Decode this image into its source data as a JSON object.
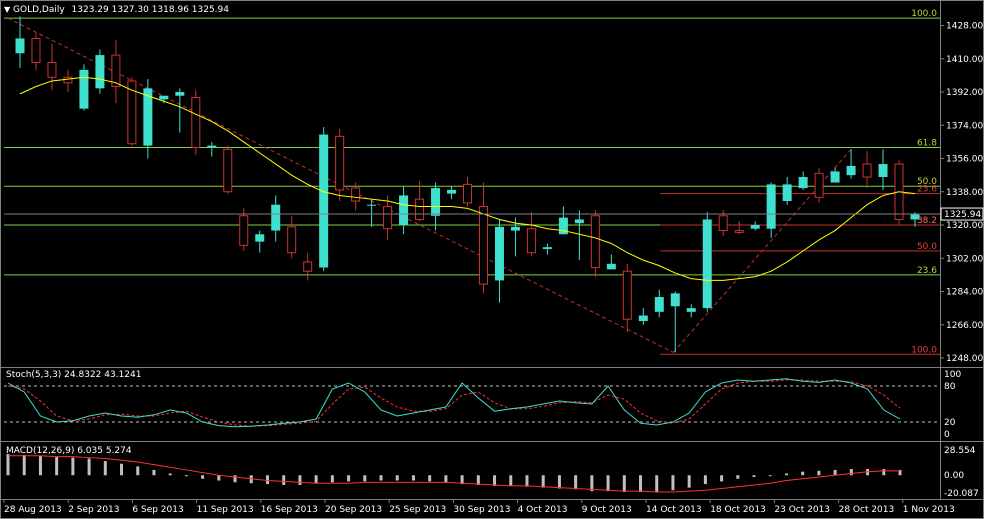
{
  "header": {
    "symbol": "GOLD,Daily",
    "ohlc": "1323.29 1327.30 1318.96 1325.94",
    "stoch_label": "Stoch(5,3,3) 24.8322 43.1241",
    "macd_label": "MACD(12,26,9) 6.035 5.274"
  },
  "colors": {
    "background": "#000000",
    "bull_candle": "#40e0d0",
    "bear_candle": "#cc3333",
    "moving_average": "#ffff00",
    "fib_green": "#80d040",
    "fib_red": "#c03030",
    "stoch_main": "#40e0d0",
    "stoch_signal": "#ff3030",
    "macd_hist": "#c0c0c0",
    "macd_signal": "#ff3030"
  },
  "chart_data": {
    "type": "candlestick",
    "price_axis_ticks": [
      "1428.00",
      "1410.00",
      "1392.00",
      "1374.00",
      "1356.00",
      "1338.00",
      "1320.00",
      "1302.00",
      "1284.00",
      "1266.00",
      "1248.00"
    ],
    "last_price": "1325.94",
    "date_labels": [
      "28 Aug 2013",
      "2 Sep 2013",
      "6 Sep 2013",
      "11 Sep 2013",
      "16 Sep 2013",
      "20 Sep 2013",
      "25 Sep 2013",
      "30 Sep 2013",
      "4 Oct 2013",
      "9 Oct 2013",
      "14 Oct 2013",
      "18 Oct 2013",
      "23 Oct 2013",
      "28 Oct 2013",
      "1 Nov 2013"
    ],
    "candles": [
      {
        "o": 1413,
        "h": 1433,
        "l": 1405,
        "c": 1421
      },
      {
        "o": 1421,
        "h": 1424,
        "l": 1404,
        "c": 1408
      },
      {
        "o": 1408,
        "h": 1418,
        "l": 1393,
        "c": 1400
      },
      {
        "o": 1400,
        "h": 1404,
        "l": 1392,
        "c": 1397
      },
      {
        "o": 1383,
        "h": 1407,
        "l": 1382,
        "c": 1404
      },
      {
        "o": 1394,
        "h": 1415,
        "l": 1391,
        "c": 1412
      },
      {
        "o": 1412,
        "h": 1420,
        "l": 1386,
        "c": 1395
      },
      {
        "o": 1398,
        "h": 1400,
        "l": 1363,
        "c": 1364
      },
      {
        "o": 1363,
        "h": 1399,
        "l": 1356,
        "c": 1394
      },
      {
        "o": 1388,
        "h": 1390,
        "l": 1386,
        "c": 1390
      },
      {
        "o": 1390,
        "h": 1394,
        "l": 1370,
        "c": 1392
      },
      {
        "o": 1389,
        "h": 1393,
        "l": 1358,
        "c": 1362
      },
      {
        "o": 1362,
        "h": 1365,
        "l": 1357,
        "c": 1363
      },
      {
        "o": 1361,
        "h": 1363,
        "l": 1337,
        "c": 1338
      },
      {
        "o": 1325,
        "h": 1329,
        "l": 1306,
        "c": 1309
      },
      {
        "o": 1311,
        "h": 1317,
        "l": 1305,
        "c": 1315
      },
      {
        "o": 1317,
        "h": 1336,
        "l": 1311,
        "c": 1331
      },
      {
        "o": 1319,
        "h": 1325,
        "l": 1302,
        "c": 1305
      },
      {
        "o": 1300,
        "h": 1305,
        "l": 1290,
        "c": 1295
      },
      {
        "o": 1297,
        "h": 1373,
        "l": 1295,
        "c": 1369
      },
      {
        "o": 1368,
        "h": 1372,
        "l": 1333,
        "c": 1339
      },
      {
        "o": 1340,
        "h": 1343,
        "l": 1328,
        "c": 1333
      },
      {
        "o": 1331,
        "h": 1334,
        "l": 1319,
        "c": 1331
      },
      {
        "o": 1330,
        "h": 1336,
        "l": 1312,
        "c": 1318
      },
      {
        "o": 1320,
        "h": 1341,
        "l": 1315,
        "c": 1336
      },
      {
        "o": 1334,
        "h": 1344,
        "l": 1322,
        "c": 1323
      },
      {
        "o": 1325,
        "h": 1343,
        "l": 1317,
        "c": 1340
      },
      {
        "o": 1337,
        "h": 1341,
        "l": 1334,
        "c": 1339
      },
      {
        "o": 1342,
        "h": 1346,
        "l": 1330,
        "c": 1332
      },
      {
        "o": 1330,
        "h": 1343,
        "l": 1283,
        "c": 1288
      },
      {
        "o": 1290,
        "h": 1323,
        "l": 1278,
        "c": 1319
      },
      {
        "o": 1317,
        "h": 1324,
        "l": 1303,
        "c": 1319
      },
      {
        "o": 1318,
        "h": 1327,
        "l": 1303,
        "c": 1305
      },
      {
        "o": 1307,
        "h": 1310,
        "l": 1304,
        "c": 1308
      },
      {
        "o": 1315,
        "h": 1330,
        "l": 1315,
        "c": 1324
      },
      {
        "o": 1321,
        "h": 1328,
        "l": 1301,
        "c": 1323
      },
      {
        "o": 1325,
        "h": 1328,
        "l": 1292,
        "c": 1297
      },
      {
        "o": 1296,
        "h": 1304,
        "l": 1296,
        "c": 1299
      },
      {
        "o": 1295,
        "h": 1299,
        "l": 1262,
        "c": 1269
      },
      {
        "o": 1268,
        "h": 1275,
        "l": 1266,
        "c": 1271
      },
      {
        "o": 1273,
        "h": 1285,
        "l": 1270,
        "c": 1281
      },
      {
        "o": 1276,
        "h": 1284,
        "l": 1251,
        "c": 1283
      },
      {
        "o": 1273,
        "h": 1277,
        "l": 1270,
        "c": 1275
      },
      {
        "o": 1275,
        "h": 1327,
        "l": 1273,
        "c": 1323
      },
      {
        "o": 1325,
        "h": 1328,
        "l": 1314,
        "c": 1317
      },
      {
        "o": 1317,
        "h": 1322,
        "l": 1315,
        "c": 1316
      },
      {
        "o": 1318,
        "h": 1322,
        "l": 1317,
        "c": 1320
      },
      {
        "o": 1318,
        "h": 1343,
        "l": 1313,
        "c": 1342
      },
      {
        "o": 1333,
        "h": 1346,
        "l": 1331,
        "c": 1342
      },
      {
        "o": 1340,
        "h": 1349,
        "l": 1339,
        "c": 1346
      },
      {
        "o": 1348,
        "h": 1351,
        "l": 1332,
        "c": 1335
      },
      {
        "o": 1343,
        "h": 1351,
        "l": 1343,
        "c": 1349
      },
      {
        "o": 1347,
        "h": 1361,
        "l": 1345,
        "c": 1352
      },
      {
        "o": 1353,
        "h": 1360,
        "l": 1340,
        "c": 1346
      },
      {
        "o": 1346,
        "h": 1361,
        "l": 1339,
        "c": 1353
      },
      {
        "o": 1353,
        "h": 1355,
        "l": 1320,
        "c": 1323
      },
      {
        "o": 1323,
        "h": 1327,
        "l": 1319,
        "c": 1326
      }
    ],
    "moving_average": [
      1391,
      1395,
      1398,
      1399,
      1400,
      1399,
      1397,
      1393,
      1390,
      1387,
      1384,
      1380,
      1376,
      1371,
      1365,
      1359,
      1353,
      1347,
      1342,
      1338,
      1336,
      1335,
      1334,
      1333,
      1331,
      1330,
      1330,
      1330,
      1329,
      1326,
      1323,
      1321,
      1320,
      1318,
      1317,
      1315,
      1313,
      1310,
      1305,
      1301,
      1298,
      1294,
      1291,
      1290,
      1290,
      1291,
      1292,
      1295,
      1300,
      1306,
      1312,
      1317,
      1324,
      1331,
      1336,
      1338,
      1337
    ],
    "fibonacci_levels": [
      {
        "label": "100.0",
        "price": 1432,
        "color": "green"
      },
      {
        "label": "61.8",
        "price": 1362,
        "color": "green"
      },
      {
        "label": "50.0",
        "price": 1341,
        "color": "green"
      },
      {
        "label": "38.2",
        "price": 1320,
        "color": "green"
      },
      {
        "label": "23.6",
        "price": 1293,
        "color": "green"
      },
      {
        "label": "100.0",
        "price": 1250,
        "color": "red"
      },
      {
        "label": "23.6",
        "price": 1337,
        "color": "red"
      },
      {
        "label": "38.2",
        "price": 1320,
        "color": "red"
      },
      {
        "label": "50.0",
        "price": 1306,
        "color": "red"
      }
    ],
    "stochastic": {
      "axis_ticks": [
        "100",
        "80",
        "20",
        "0"
      ],
      "main": [
        85,
        70,
        30,
        20,
        22,
        30,
        35,
        30,
        28,
        32,
        40,
        35,
        20,
        14,
        12,
        13,
        15,
        18,
        20,
        25,
        75,
        85,
        70,
        40,
        30,
        35,
        40,
        45,
        85,
        60,
        38,
        42,
        45,
        50,
        55,
        52,
        50,
        80,
        40,
        18,
        15,
        20,
        35,
        70,
        85,
        90,
        88,
        90,
        92,
        88,
        86,
        90,
        85,
        75,
        40,
        25
      ],
      "signal": [
        80,
        75,
        55,
        30,
        22,
        25,
        32,
        33,
        30,
        30,
        35,
        38,
        28,
        20,
        15,
        13,
        14,
        16,
        18,
        21,
        50,
        75,
        78,
        60,
        45,
        38,
        38,
        42,
        65,
        70,
        52,
        42,
        42,
        46,
        52,
        54,
        52,
        65,
        58,
        35,
        22,
        18,
        25,
        50,
        75,
        85,
        88,
        88,
        90,
        90,
        88,
        88,
        87,
        80,
        65,
        43
      ]
    },
    "macd": {
      "axis_ticks": [
        "28.554",
        "0.00",
        "-20.087"
      ],
      "histogram": [
        24,
        23,
        22,
        21,
        20,
        19,
        16,
        13,
        10,
        6,
        2,
        -1,
        -4,
        -6,
        -8,
        -9,
        -10,
        -11,
        -11,
        -9,
        -8,
        -7,
        -7,
        -6,
        -6,
        -6,
        -7,
        -8,
        -10,
        -11,
        -12,
        -12,
        -13,
        -14,
        -15,
        -16,
        -18,
        -18,
        -19,
        -19,
        -19,
        -17,
        -14,
        -10,
        -7,
        -4,
        -2,
        0,
        2,
        4,
        5,
        6,
        7,
        7,
        7,
        6
      ],
      "signal": [
        22,
        22,
        22,
        21,
        21,
        20,
        19,
        17,
        15,
        12,
        9,
        6,
        3,
        0,
        -2,
        -4,
        -6,
        -7,
        -8,
        -9,
        -9,
        -9,
        -8,
        -8,
        -8,
        -8,
        -8,
        -8,
        -9,
        -10,
        -11,
        -12,
        -12,
        -13,
        -14,
        -15,
        -16,
        -17,
        -18,
        -18,
        -19,
        -19,
        -18,
        -17,
        -15,
        -13,
        -11,
        -9,
        -6,
        -4,
        -2,
        0,
        2,
        4,
        5,
        5
      ]
    }
  }
}
